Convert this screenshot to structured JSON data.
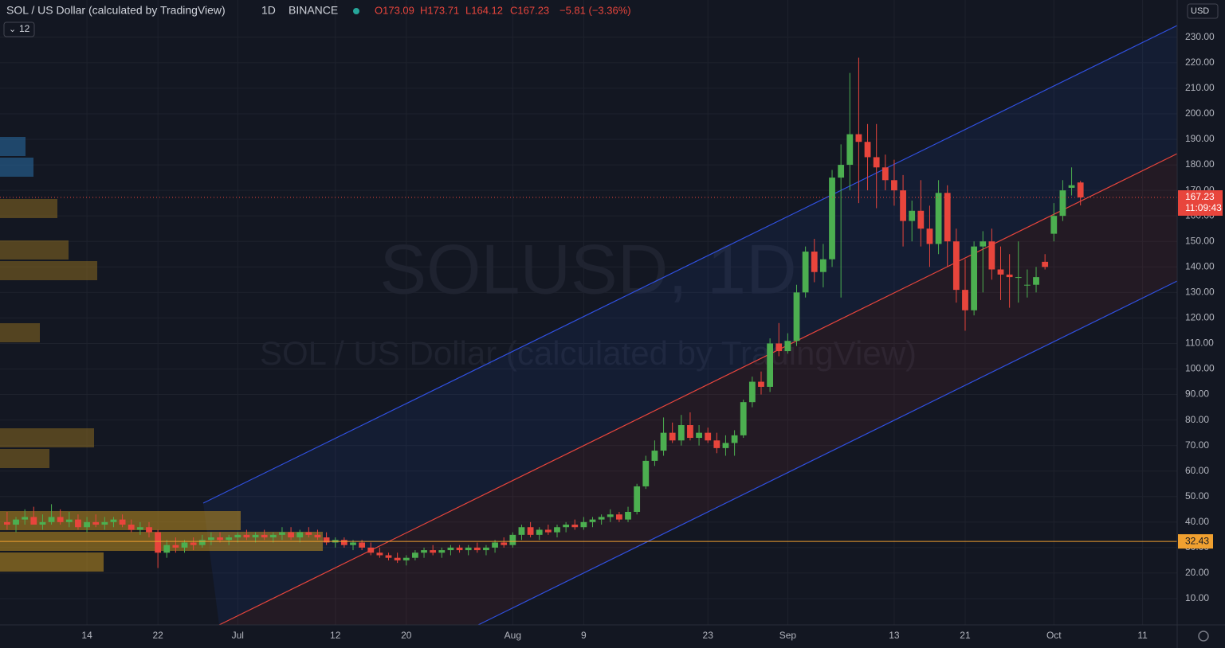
{
  "header": {
    "symbol": "SOL / US Dollar (calculated by TradingView)",
    "interval": "1D",
    "exchange": "BINANCE",
    "ohlc": [
      "O173.09",
      "H173.71",
      "L164.12",
      "C167.23"
    ],
    "change": "−5.81 (−3.36%)",
    "indicator_count": "12",
    "currency": "USD"
  },
  "watermark": {
    "line1": "SOLUSD, 1D",
    "line2": "SOL / US Dollar (calculated by TradingView)"
  },
  "chart_data": {
    "type": "candlestick",
    "up_color": "#4caf50",
    "down_color": "#e8453c",
    "grid": true,
    "ylim": [
      -0.3,
      244.6
    ],
    "xlim": [
      -0.8,
      131.9
    ],
    "yticks": [
      {
        "value": 10,
        "label": "10.00"
      },
      {
        "value": 20,
        "label": "20.00"
      },
      {
        "value": 30,
        "label": "30.00"
      },
      {
        "value": 40,
        "label": "40.00"
      },
      {
        "value": 50,
        "label": "50.00"
      },
      {
        "value": 60,
        "label": "60.00"
      },
      {
        "value": 70,
        "label": "70.00"
      },
      {
        "value": 80,
        "label": "80.00"
      },
      {
        "value": 90,
        "label": "90.00"
      },
      {
        "value": 100,
        "label": "100.00"
      },
      {
        "value": 110,
        "label": "110.00"
      },
      {
        "value": 120,
        "label": "120.00"
      },
      {
        "value": 130,
        "label": "130.00"
      },
      {
        "value": 140,
        "label": "140.00"
      },
      {
        "value": 150,
        "label": "150.00"
      },
      {
        "value": 160,
        "label": "160.00"
      },
      {
        "value": 170,
        "label": "170.00"
      },
      {
        "value": 180,
        "label": "180.00"
      },
      {
        "value": 190,
        "label": "190.00"
      },
      {
        "value": 200,
        "label": "200.00"
      },
      {
        "value": 210,
        "label": "210.00"
      },
      {
        "value": 220,
        "label": "220.00"
      },
      {
        "value": 230,
        "label": "230.00"
      }
    ],
    "xticks": [
      {
        "value": 9,
        "label": "14"
      },
      {
        "value": 17,
        "label": "22"
      },
      {
        "value": 26,
        "label": "Jul"
      },
      {
        "value": 37,
        "label": "12"
      },
      {
        "value": 45,
        "label": "20"
      },
      {
        "value": 57,
        "label": "Aug"
      },
      {
        "value": 65,
        "label": "9"
      },
      {
        "value": 79,
        "label": "23"
      },
      {
        "value": 88,
        "label": "Sep"
      },
      {
        "value": 100,
        "label": "13"
      },
      {
        "value": 108,
        "label": "21"
      },
      {
        "value": 118,
        "label": "Oct"
      },
      {
        "value": 128,
        "label": "11"
      }
    ],
    "last_price": {
      "value": 167.23,
      "label": "167.23",
      "countdown": "11:09:43",
      "color": "#e8453c"
    },
    "level": {
      "value": 32.43,
      "label": "32.43",
      "color": "#f0a030"
    },
    "candles": [
      [
        40,
        44,
        37,
        39
      ],
      [
        39,
        42,
        36,
        41
      ],
      [
        41,
        45,
        39,
        42
      ],
      [
        42,
        46,
        40,
        39
      ],
      [
        39,
        43,
        37,
        40
      ],
      [
        40,
        47,
        39,
        42
      ],
      [
        42,
        45,
        39,
        40
      ],
      [
        40,
        44,
        38,
        41
      ],
      [
        41,
        43,
        37,
        38
      ],
      [
        38,
        42,
        36,
        40
      ],
      [
        40,
        43,
        38,
        39
      ],
      [
        39,
        42,
        37,
        40
      ],
      [
        40,
        42,
        38,
        41
      ],
      [
        41,
        43,
        38,
        39
      ],
      [
        39,
        41,
        36,
        37
      ],
      [
        37,
        40,
        35,
        38
      ],
      [
        38,
        40,
        34,
        36
      ],
      [
        36,
        37,
        22,
        28
      ],
      [
        28,
        33,
        26,
        31
      ],
      [
        31,
        34,
        28,
        30
      ],
      [
        30,
        33,
        28,
        32
      ],
      [
        32,
        34,
        29,
        31
      ],
      [
        31,
        35,
        30,
        33
      ],
      [
        33,
        36,
        31,
        34
      ],
      [
        34,
        36,
        32,
        33
      ],
      [
        33,
        35,
        31,
        34
      ],
      [
        34,
        36,
        32,
        35
      ],
      [
        35,
        37,
        33,
        34
      ],
      [
        34,
        36,
        32,
        35
      ],
      [
        35,
        37,
        33,
        34
      ],
      [
        34,
        36,
        32,
        35
      ],
      [
        35,
        38,
        33,
        36
      ],
      [
        36,
        38,
        33,
        34
      ],
      [
        34,
        37,
        32,
        36
      ],
      [
        36,
        38,
        34,
        35
      ],
      [
        35,
        37,
        33,
        34
      ],
      [
        34,
        36,
        31,
        32
      ],
      [
        32,
        34,
        30,
        33
      ],
      [
        33,
        34,
        30,
        31
      ],
      [
        31,
        33,
        29,
        32
      ],
      [
        32,
        33,
        29,
        30
      ],
      [
        30,
        32,
        27,
        28
      ],
      [
        28,
        30,
        26,
        27
      ],
      [
        27,
        28,
        25,
        26
      ],
      [
        26,
        28,
        24,
        25
      ],
      [
        25,
        27,
        23,
        26
      ],
      [
        26,
        29,
        25,
        28
      ],
      [
        28,
        30,
        26,
        29
      ],
      [
        29,
        31,
        27,
        28
      ],
      [
        28,
        30,
        26,
        29
      ],
      [
        29,
        31,
        27,
        30
      ],
      [
        30,
        31,
        28,
        29
      ],
      [
        29,
        31,
        27,
        30
      ],
      [
        30,
        32,
        28,
        29
      ],
      [
        29,
        31,
        27,
        30
      ],
      [
        30,
        33,
        28,
        32
      ],
      [
        32,
        34,
        30,
        31
      ],
      [
        31,
        36,
        30,
        35
      ],
      [
        35,
        39,
        33,
        38
      ],
      [
        38,
        40,
        34,
        35
      ],
      [
        35,
        38,
        33,
        37
      ],
      [
        37,
        39,
        35,
        36
      ],
      [
        36,
        39,
        34,
        38
      ],
      [
        38,
        40,
        36,
        39
      ],
      [
        39,
        41,
        37,
        38
      ],
      [
        38,
        42,
        37,
        40
      ],
      [
        40,
        42,
        38,
        41
      ],
      [
        41,
        43,
        39,
        42
      ],
      [
        42,
        45,
        40,
        43
      ],
      [
        43,
        44,
        40,
        41
      ],
      [
        41,
        46,
        40,
        44
      ],
      [
        44,
        55,
        43,
        54
      ],
      [
        54,
        66,
        53,
        64
      ],
      [
        64,
        72,
        62,
        68
      ],
      [
        68,
        81,
        66,
        75
      ],
      [
        75,
        79,
        71,
        72
      ],
      [
        72,
        82,
        70,
        78
      ],
      [
        78,
        83,
        72,
        73
      ],
      [
        73,
        78,
        70,
        75
      ],
      [
        75,
        77,
        71,
        72
      ],
      [
        72,
        75,
        67,
        69
      ],
      [
        69,
        74,
        66,
        71
      ],
      [
        71,
        76,
        66,
        74
      ],
      [
        74,
        88,
        73,
        87
      ],
      [
        87,
        97,
        85,
        95
      ],
      [
        95,
        99,
        90,
        93
      ],
      [
        93,
        112,
        91,
        110
      ],
      [
        110,
        118,
        105,
        107
      ],
      [
        107,
        114,
        106,
        111
      ],
      [
        111,
        133,
        109,
        130
      ],
      [
        130,
        148,
        128,
        146
      ],
      [
        146,
        151,
        134,
        138
      ],
      [
        138,
        149,
        132,
        143
      ],
      [
        143,
        178,
        140,
        175
      ],
      [
        175,
        188,
        128,
        180
      ],
      [
        180,
        216,
        170,
        192
      ],
      [
        192,
        222,
        165,
        189
      ],
      [
        189,
        196,
        170,
        183
      ],
      [
        183,
        196,
        163,
        179
      ],
      [
        179,
        184,
        170,
        174
      ],
      [
        174,
        182,
        164,
        170
      ],
      [
        170,
        176,
        148,
        158
      ],
      [
        158,
        166,
        150,
        162
      ],
      [
        162,
        174,
        148,
        155
      ],
      [
        155,
        164,
        140,
        149
      ],
      [
        149,
        174,
        145,
        169
      ],
      [
        169,
        172,
        140,
        150
      ],
      [
        150,
        155,
        126,
        131
      ],
      [
        131,
        143,
        115,
        123
      ],
      [
        123,
        150,
        121,
        148
      ],
      [
        148,
        154,
        130,
        150
      ],
      [
        150,
        155,
        135,
        139
      ],
      [
        139,
        148,
        127,
        137
      ],
      [
        137,
        145,
        124,
        136
      ],
      [
        136,
        150,
        126,
        136
      ],
      [
        133,
        139,
        128,
        133
      ],
      [
        133,
        140,
        130,
        136
      ],
      [
        142,
        145,
        139,
        140
      ],
      [
        153,
        165,
        150,
        160
      ],
      [
        160,
        174,
        158,
        170
      ],
      [
        171,
        179,
        168,
        172
      ],
      [
        173.09,
        173.71,
        164.12,
        167.23
      ]
    ]
  }
}
